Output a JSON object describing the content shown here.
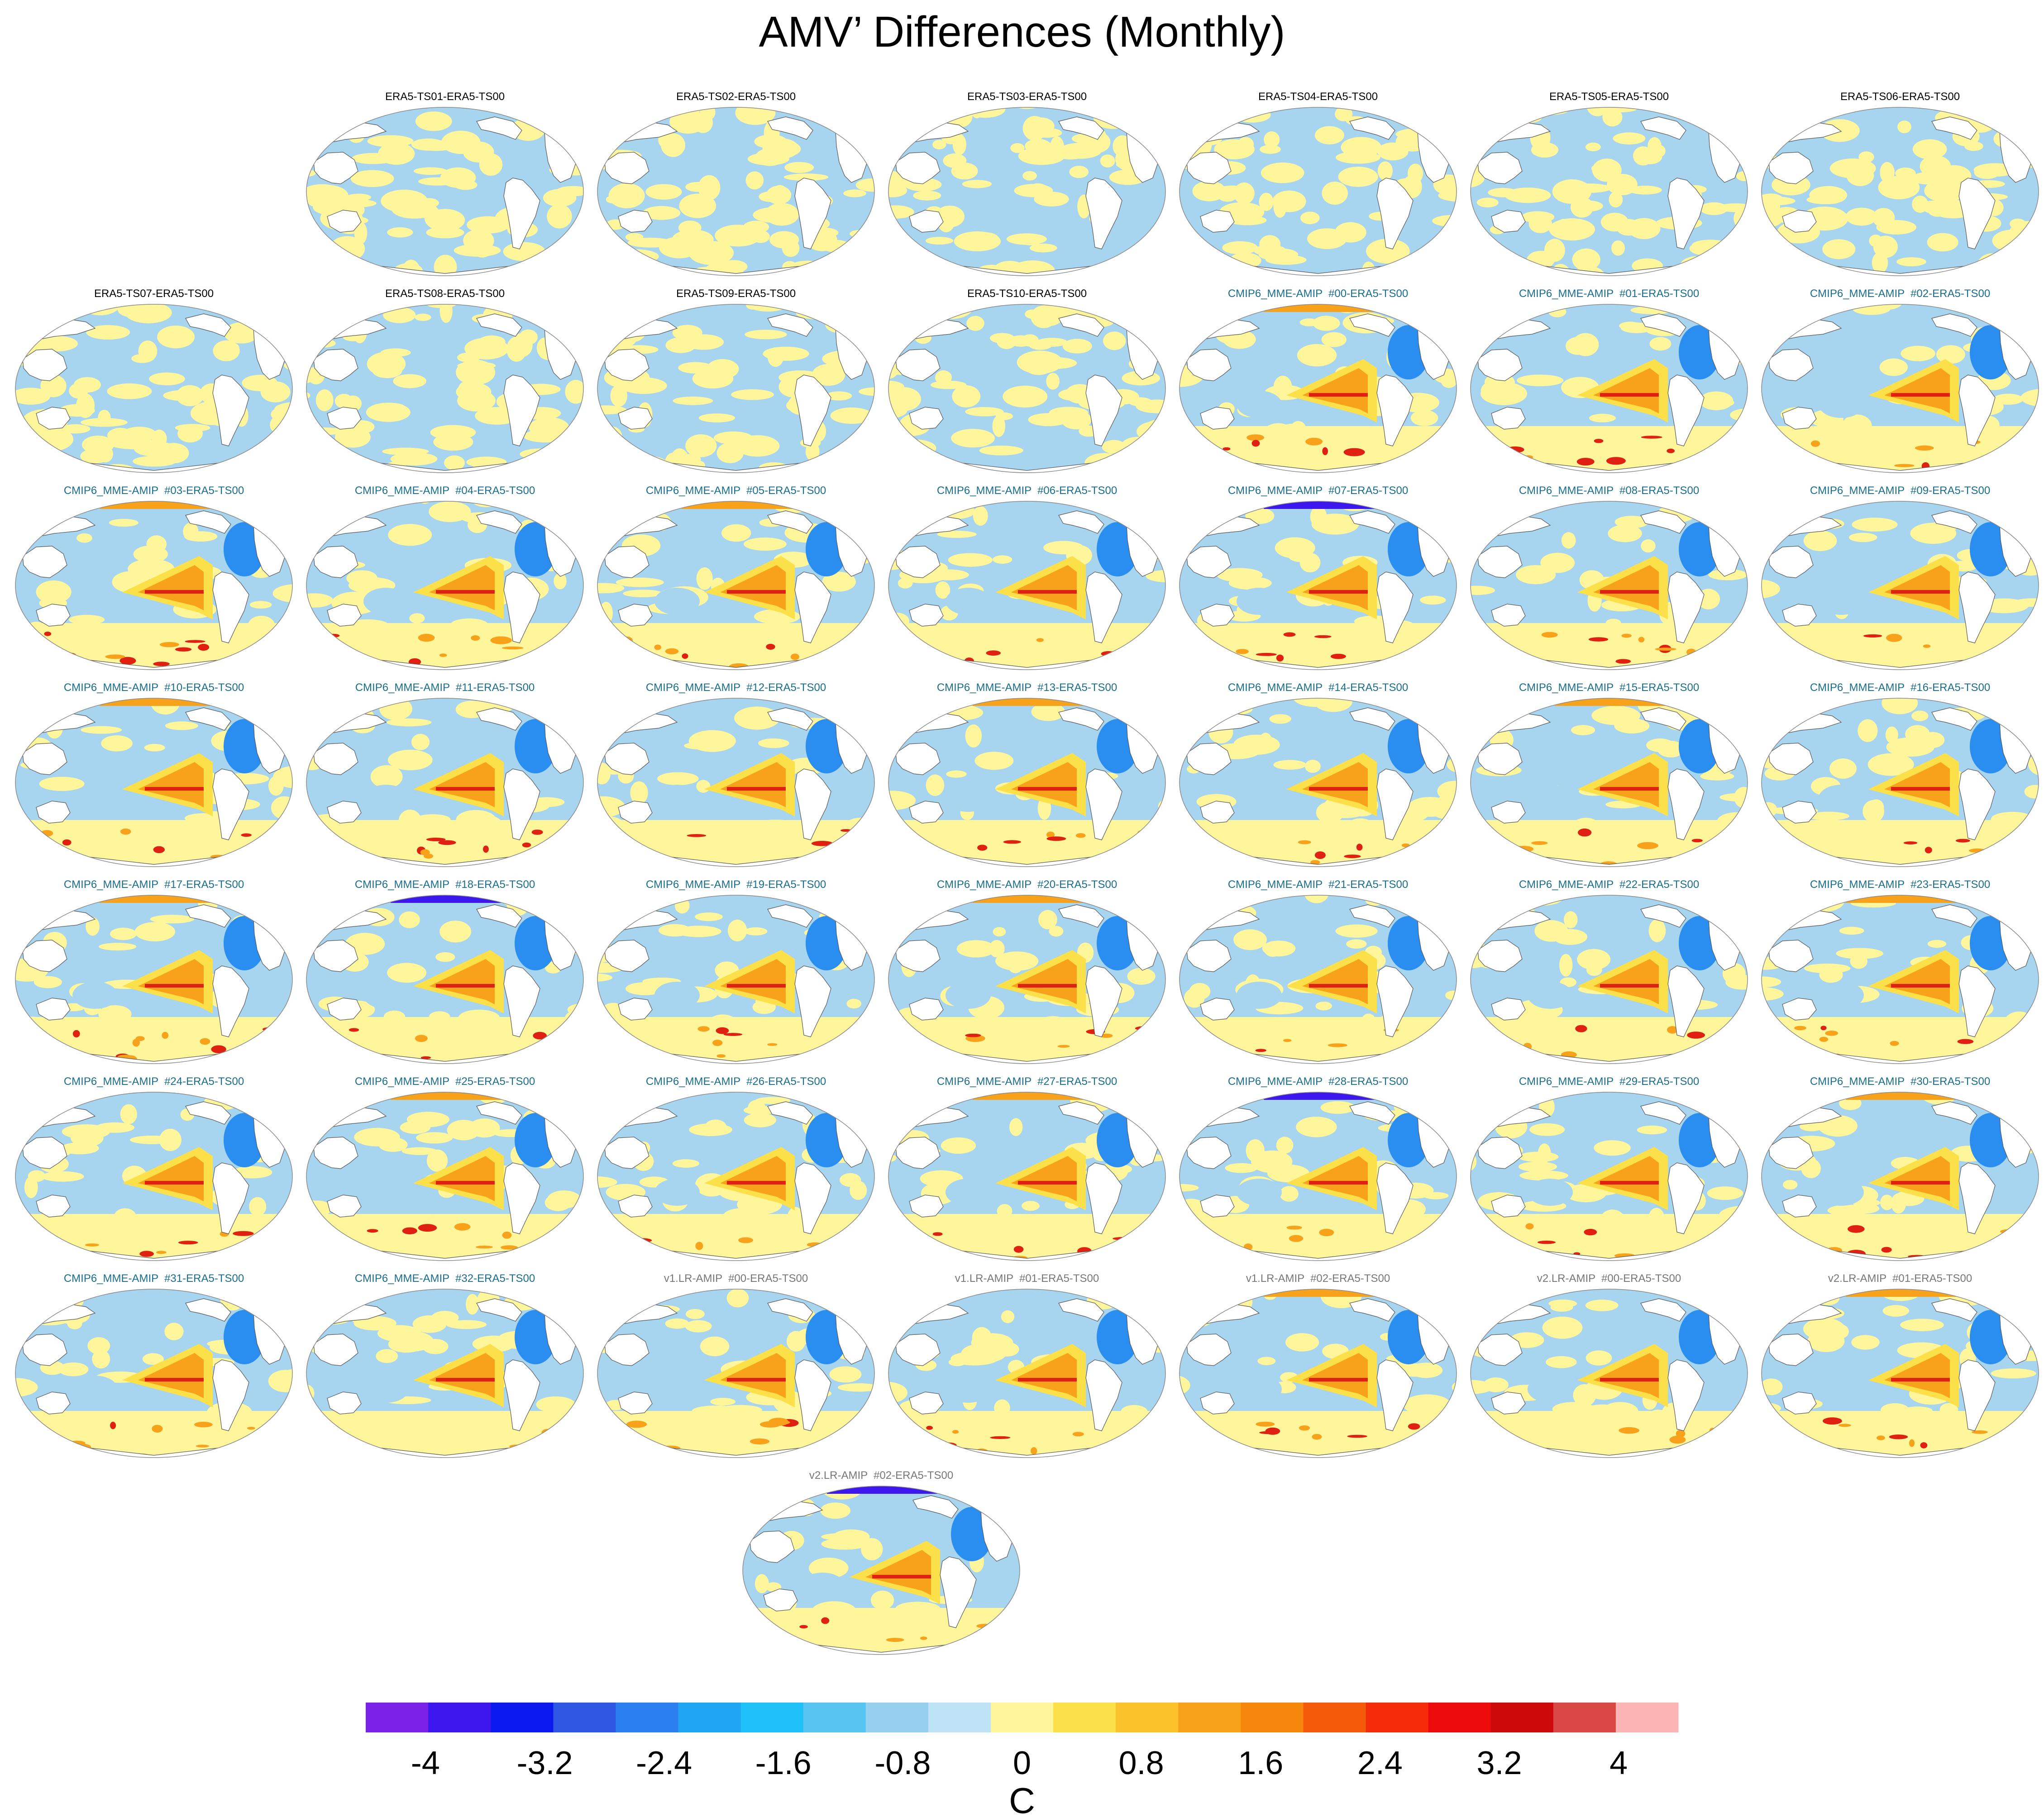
{
  "title": "AMV’ Differences (Monthly)",
  "palette": {
    "blue": "#a7d4ef",
    "yellow": "#fff59b",
    "orange": "#f7a21a",
    "red": "#e02010",
    "deep_blue": "#2a8ef0",
    "land": "#ffffff",
    "coast": "#555555"
  },
  "panels": [
    {
      "label": "ERA5-TS01-ERA5-TS00",
      "group": "era5"
    },
    {
      "label": "ERA5-TS02-ERA5-TS00",
      "group": "era5"
    },
    {
      "label": "ERA5-TS03-ERA5-TS00",
      "group": "era5"
    },
    {
      "label": "ERA5-TS04-ERA5-TS00",
      "group": "era5"
    },
    {
      "label": "ERA5-TS05-ERA5-TS00",
      "group": "era5"
    },
    {
      "label": "ERA5-TS06-ERA5-TS00",
      "group": "era5"
    },
    {
      "label": "ERA5-TS07-ERA5-TS00",
      "group": "era5"
    },
    {
      "label": "ERA5-TS08-ERA5-TS00",
      "group": "era5"
    },
    {
      "label": "ERA5-TS09-ERA5-TS00",
      "group": "era5"
    },
    {
      "label": "ERA5-TS10-ERA5-TS00",
      "group": "era5"
    },
    {
      "label": "CMIP6_MME-AMIP  #00-ERA5-TS00",
      "group": "cmip6"
    },
    {
      "label": "CMIP6_MME-AMIP  #01-ERA5-TS00",
      "group": "cmip6"
    },
    {
      "label": "CMIP6_MME-AMIP  #02-ERA5-TS00",
      "group": "cmip6"
    },
    {
      "label": "CMIP6_MME-AMIP  #03-ERA5-TS00",
      "group": "cmip6"
    },
    {
      "label": "CMIP6_MME-AMIP  #04-ERA5-TS00",
      "group": "cmip6"
    },
    {
      "label": "CMIP6_MME-AMIP  #05-ERA5-TS00",
      "group": "cmip6"
    },
    {
      "label": "CMIP6_MME-AMIP  #06-ERA5-TS00",
      "group": "cmip6"
    },
    {
      "label": "CMIP6_MME-AMIP  #07-ERA5-TS00",
      "group": "cmip6"
    },
    {
      "label": "CMIP6_MME-AMIP  #08-ERA5-TS00",
      "group": "cmip6"
    },
    {
      "label": "CMIP6_MME-AMIP  #09-ERA5-TS00",
      "group": "cmip6"
    },
    {
      "label": "CMIP6_MME-AMIP  #10-ERA5-TS00",
      "group": "cmip6"
    },
    {
      "label": "CMIP6_MME-AMIP  #11-ERA5-TS00",
      "group": "cmip6"
    },
    {
      "label": "CMIP6_MME-AMIP  #12-ERA5-TS00",
      "group": "cmip6"
    },
    {
      "label": "CMIP6_MME-AMIP  #13-ERA5-TS00",
      "group": "cmip6"
    },
    {
      "label": "CMIP6_MME-AMIP  #14-ERA5-TS00",
      "group": "cmip6"
    },
    {
      "label": "CMIP6_MME-AMIP  #15-ERA5-TS00",
      "group": "cmip6"
    },
    {
      "label": "CMIP6_MME-AMIP  #16-ERA5-TS00",
      "group": "cmip6"
    },
    {
      "label": "CMIP6_MME-AMIP  #17-ERA5-TS00",
      "group": "cmip6"
    },
    {
      "label": "CMIP6_MME-AMIP  #18-ERA5-TS00",
      "group": "cmip6"
    },
    {
      "label": "CMIP6_MME-AMIP  #19-ERA5-TS00",
      "group": "cmip6"
    },
    {
      "label": "CMIP6_MME-AMIP  #20-ERA5-TS00",
      "group": "cmip6"
    },
    {
      "label": "CMIP6_MME-AMIP  #21-ERA5-TS00",
      "group": "cmip6"
    },
    {
      "label": "CMIP6_MME-AMIP  #22-ERA5-TS00",
      "group": "cmip6"
    },
    {
      "label": "CMIP6_MME-AMIP  #23-ERA5-TS00",
      "group": "cmip6"
    },
    {
      "label": "CMIP6_MME-AMIP  #24-ERA5-TS00",
      "group": "cmip6"
    },
    {
      "label": "CMIP6_MME-AMIP  #25-ERA5-TS00",
      "group": "cmip6"
    },
    {
      "label": "CMIP6_MME-AMIP  #26-ERA5-TS00",
      "group": "cmip6"
    },
    {
      "label": "CMIP6_MME-AMIP  #27-ERA5-TS00",
      "group": "cmip6"
    },
    {
      "label": "CMIP6_MME-AMIP  #28-ERA5-TS00",
      "group": "cmip6"
    },
    {
      "label": "CMIP6_MME-AMIP  #29-ERA5-TS00",
      "group": "cmip6"
    },
    {
      "label": "CMIP6_MME-AMIP  #30-ERA5-TS00",
      "group": "cmip6"
    },
    {
      "label": "CMIP6_MME-AMIP  #31-ERA5-TS00",
      "group": "cmip6"
    },
    {
      "label": "CMIP6_MME-AMIP  #32-ERA5-TS00",
      "group": "cmip6"
    },
    {
      "label": "v1.LR-AMIP  #00-ERA5-TS00",
      "group": "e3sm"
    },
    {
      "label": "v1.LR-AMIP  #01-ERA5-TS00",
      "group": "e3sm"
    },
    {
      "label": "v1.LR-AMIP  #02-ERA5-TS00",
      "group": "e3sm"
    },
    {
      "label": "v2.LR-AMIP  #00-ERA5-TS00",
      "group": "e3sm"
    },
    {
      "label": "v2.LR-AMIP  #01-ERA5-TS00",
      "group": "e3sm"
    },
    {
      "label": "v2.LR-AMIP  #02-ERA5-TS00",
      "group": "e3sm"
    }
  ],
  "title_colors": {
    "era5": "#000000",
    "cmip6": "#1a6e8c",
    "e3sm": "#777777"
  },
  "chart_data": {
    "type": "heatmap",
    "title": "AMV’ Differences (Monthly)",
    "colorbar": {
      "label": "C",
      "ticks": [
        -4,
        -3.2,
        -2.4,
        -1.6,
        -0.8,
        0,
        0.8,
        1.6,
        2.4,
        3.2,
        4
      ],
      "tick_labels": [
        "-4",
        "-3.2",
        "-2.4",
        "-1.6",
        "-0.8",
        "0",
        "0.8",
        "1.6",
        "2.4",
        "3.2",
        "4"
      ],
      "range": [
        -4.4,
        4.4
      ],
      "bin_width": 0.4,
      "colors": [
        "#7b22e8",
        "#3c18ee",
        "#0c1aef",
        "#2d56e3",
        "#2a7ef0",
        "#1ea6f5",
        "#1ec1f7",
        "#56c6f0",
        "#96d0ef",
        "#bfe3f6",
        "#fff59b",
        "#fce04a",
        "#fbc22b",
        "#f7a21a",
        "#f7860c",
        "#f55a0b",
        "#f52c0a",
        "#ec0a0a",
        "#cc0a0a",
        "#d94744",
        "#fcb4b4"
      ]
    }
  }
}
